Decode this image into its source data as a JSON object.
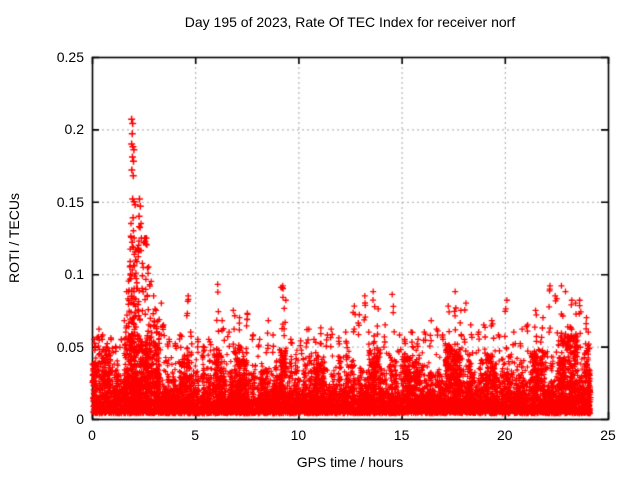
{
  "chart_data": {
    "type": "scatter",
    "title": "Day 195 of 2023, Rate Of TEC Index for receiver norf",
    "xlabel": "GPS time / hours",
    "ylabel": "ROTI / TECUs",
    "xlim": [
      0,
      25
    ],
    "ylim": [
      0,
      0.25
    ],
    "xticks": [
      0,
      5,
      10,
      15,
      20,
      25
    ],
    "xtick_labels": [
      "0",
      "5",
      "10",
      "15",
      "20",
      "25"
    ],
    "yticks": [
      0,
      0.05,
      0.1,
      0.15,
      0.2,
      0.25
    ],
    "ytick_labels": [
      "0",
      "0.05",
      "0.1",
      "0.15",
      "0.2",
      "0.25"
    ],
    "grid": true,
    "legend": "none",
    "marker": "plus",
    "colors": {
      "marker": "#ff0000",
      "grid": "#a8a8a8",
      "border": "#000000",
      "text": "#000000",
      "background": "#ffffff"
    },
    "series_name": "ROTI",
    "x_data_range": [
      0.02,
      24.18
    ],
    "y_peak": 0.207,
    "baseline_band": {
      "y_floor": 0.0035,
      "exp_mean": 0.0085,
      "y_cap": 0.05,
      "points": 8200,
      "texture_bumps": {
        "count": 70,
        "top_min": 0.03,
        "top_max": 0.048,
        "n_each": 22
      }
    },
    "peak_points": [
      [
        1.92,
        0.207
      ],
      [
        1.97,
        0.204
      ],
      [
        1.95,
        0.197
      ],
      [
        1.92,
        0.19
      ],
      [
        1.98,
        0.188
      ],
      [
        2.03,
        0.186
      ],
      [
        1.96,
        0.181
      ],
      [
        2.01,
        0.178
      ],
      [
        1.93,
        0.172
      ],
      [
        2.0,
        0.168
      ],
      [
        1.97,
        0.152
      ],
      [
        2.04,
        0.15
      ],
      [
        2.09,
        0.148
      ],
      [
        1.99,
        0.139
      ],
      [
        2.3,
        0.152
      ],
      [
        2.34,
        0.147
      ],
      [
        2.28,
        0.14
      ]
    ],
    "spikes": [
      {
        "x": 0.15,
        "ymax": 0.055,
        "n": 4
      },
      {
        "x": 0.3,
        "ymax": 0.062,
        "n": 5
      },
      {
        "x": 0.5,
        "ymax": 0.058,
        "n": 4
      },
      {
        "x": 0.75,
        "ymax": 0.052,
        "n": 3
      },
      {
        "x": 0.95,
        "ymax": 0.056,
        "n": 4
      },
      {
        "x": 1.2,
        "ymax": 0.05,
        "n": 3
      },
      {
        "x": 1.4,
        "ymax": 0.055,
        "n": 3
      },
      {
        "x": 1.62,
        "ymax": 0.068,
        "n": 5
      },
      {
        "x": 1.72,
        "ymax": 0.088,
        "n": 7
      },
      {
        "x": 1.82,
        "ymax": 0.105,
        "n": 10
      },
      {
        "x": 1.9,
        "ymax": 0.135,
        "n": 22
      },
      {
        "x": 2.0,
        "ymax": 0.13,
        "n": 20
      },
      {
        "x": 2.1,
        "ymax": 0.125,
        "n": 16
      },
      {
        "x": 2.2,
        "ymax": 0.12,
        "n": 14
      },
      {
        "x": 2.32,
        "ymax": 0.135,
        "n": 16
      },
      {
        "x": 2.45,
        "ymax": 0.125,
        "n": 12
      },
      {
        "x": 2.6,
        "ymax": 0.125,
        "n": 12
      },
      {
        "x": 2.72,
        "ymax": 0.105,
        "n": 10
      },
      {
        "x": 2.85,
        "ymax": 0.095,
        "n": 9
      },
      {
        "x": 3.0,
        "ymax": 0.085,
        "n": 8
      },
      {
        "x": 3.15,
        "ymax": 0.075,
        "n": 7
      },
      {
        "x": 3.3,
        "ymax": 0.08,
        "n": 6
      },
      {
        "x": 3.45,
        "ymax": 0.065,
        "n": 5
      },
      {
        "x": 3.7,
        "ymax": 0.055,
        "n": 4
      },
      {
        "x": 4.0,
        "ymax": 0.052,
        "n": 3
      },
      {
        "x": 4.3,
        "ymax": 0.058,
        "n": 4
      },
      {
        "x": 4.62,
        "ymax": 0.085,
        "n": 6
      },
      {
        "x": 4.8,
        "ymax": 0.06,
        "n": 3
      },
      {
        "x": 5.1,
        "ymax": 0.055,
        "n": 3
      },
      {
        "x": 5.4,
        "ymax": 0.05,
        "n": 3
      },
      {
        "x": 5.7,
        "ymax": 0.055,
        "n": 3
      },
      {
        "x": 6.1,
        "ymax": 0.093,
        "n": 7
      },
      {
        "x": 6.35,
        "ymax": 0.068,
        "n": 4
      },
      {
        "x": 6.6,
        "ymax": 0.06,
        "n": 3
      },
      {
        "x": 6.9,
        "ymax": 0.075,
        "n": 5
      },
      {
        "x": 7.15,
        "ymax": 0.07,
        "n": 4
      },
      {
        "x": 7.5,
        "ymax": 0.073,
        "n": 5
      },
      {
        "x": 7.8,
        "ymax": 0.058,
        "n": 3
      },
      {
        "x": 8.1,
        "ymax": 0.055,
        "n": 3
      },
      {
        "x": 8.5,
        "ymax": 0.068,
        "n": 5
      },
      {
        "x": 8.8,
        "ymax": 0.058,
        "n": 3
      },
      {
        "x": 9.2,
        "ymax": 0.092,
        "n": 8
      },
      {
        "x": 9.35,
        "ymax": 0.082,
        "n": 5
      },
      {
        "x": 9.65,
        "ymax": 0.055,
        "n": 3
      },
      {
        "x": 10.1,
        "ymax": 0.054,
        "n": 3
      },
      {
        "x": 10.45,
        "ymax": 0.062,
        "n": 4
      },
      {
        "x": 10.8,
        "ymax": 0.055,
        "n": 3
      },
      {
        "x": 11.05,
        "ymax": 0.063,
        "n": 4
      },
      {
        "x": 11.35,
        "ymax": 0.058,
        "n": 3
      },
      {
        "x": 11.6,
        "ymax": 0.062,
        "n": 4
      },
      {
        "x": 12.0,
        "ymax": 0.056,
        "n": 3
      },
      {
        "x": 12.35,
        "ymax": 0.06,
        "n": 4
      },
      {
        "x": 12.7,
        "ymax": 0.078,
        "n": 5
      },
      {
        "x": 12.95,
        "ymax": 0.072,
        "n": 4
      },
      {
        "x": 13.2,
        "ymax": 0.085,
        "n": 5
      },
      {
        "x": 13.45,
        "ymax": 0.06,
        "n": 3
      },
      {
        "x": 13.65,
        "ymax": 0.088,
        "n": 6
      },
      {
        "x": 13.85,
        "ymax": 0.076,
        "n": 4
      },
      {
        "x": 14.15,
        "ymax": 0.065,
        "n": 4
      },
      {
        "x": 14.6,
        "ymax": 0.086,
        "n": 4
      },
      {
        "x": 14.9,
        "ymax": 0.058,
        "n": 3
      },
      {
        "x": 15.2,
        "ymax": 0.055,
        "n": 3
      },
      {
        "x": 15.5,
        "ymax": 0.06,
        "n": 4
      },
      {
        "x": 15.8,
        "ymax": 0.055,
        "n": 3
      },
      {
        "x": 16.1,
        "ymax": 0.06,
        "n": 4
      },
      {
        "x": 16.4,
        "ymax": 0.068,
        "n": 4
      },
      {
        "x": 16.7,
        "ymax": 0.062,
        "n": 3
      },
      {
        "x": 17.0,
        "ymax": 0.058,
        "n": 3
      },
      {
        "x": 17.3,
        "ymax": 0.078,
        "n": 6
      },
      {
        "x": 17.6,
        "ymax": 0.088,
        "n": 6
      },
      {
        "x": 17.85,
        "ymax": 0.075,
        "n": 4
      },
      {
        "x": 18.1,
        "ymax": 0.08,
        "n": 5
      },
      {
        "x": 18.4,
        "ymax": 0.065,
        "n": 4
      },
      {
        "x": 18.7,
        "ymax": 0.06,
        "n": 3
      },
      {
        "x": 19.0,
        "ymax": 0.065,
        "n": 4
      },
      {
        "x": 19.4,
        "ymax": 0.068,
        "n": 4
      },
      {
        "x": 19.7,
        "ymax": 0.058,
        "n": 3
      },
      {
        "x": 20.05,
        "ymax": 0.082,
        "n": 5
      },
      {
        "x": 20.45,
        "ymax": 0.06,
        "n": 3
      },
      {
        "x": 20.8,
        "ymax": 0.062,
        "n": 3
      },
      {
        "x": 21.1,
        "ymax": 0.065,
        "n": 4
      },
      {
        "x": 21.5,
        "ymax": 0.075,
        "n": 5
      },
      {
        "x": 21.8,
        "ymax": 0.07,
        "n": 4
      },
      {
        "x": 22.2,
        "ymax": 0.092,
        "n": 6
      },
      {
        "x": 22.5,
        "ymax": 0.085,
        "n": 5
      },
      {
        "x": 22.8,
        "ymax": 0.092,
        "n": 6
      },
      {
        "x": 23.0,
        "ymax": 0.088,
        "n": 6
      },
      {
        "x": 23.2,
        "ymax": 0.082,
        "n": 5
      },
      {
        "x": 23.45,
        "ymax": 0.08,
        "n": 5
      },
      {
        "x": 23.65,
        "ymax": 0.082,
        "n": 6
      },
      {
        "x": 23.9,
        "ymax": 0.07,
        "n": 4
      },
      {
        "x": 24.05,
        "ymax": 0.06,
        "n": 3
      }
    ],
    "bushes": [
      {
        "x": 0.45,
        "w": 0.9,
        "top": 0.048,
        "n": 130
      },
      {
        "x": 2.4,
        "w": 1.7,
        "top": 0.056,
        "n": 320
      },
      {
        "x": 4.6,
        "w": 0.3,
        "top": 0.045,
        "n": 40
      },
      {
        "x": 6.1,
        "w": 0.4,
        "top": 0.048,
        "n": 60
      },
      {
        "x": 7.2,
        "w": 0.6,
        "top": 0.05,
        "n": 90
      },
      {
        "x": 9.25,
        "w": 0.35,
        "top": 0.048,
        "n": 55
      },
      {
        "x": 11.0,
        "w": 0.5,
        "top": 0.044,
        "n": 60
      },
      {
        "x": 13.7,
        "w": 0.6,
        "top": 0.048,
        "n": 80
      },
      {
        "x": 15.5,
        "w": 0.8,
        "top": 0.044,
        "n": 80
      },
      {
        "x": 17.5,
        "w": 0.8,
        "top": 0.052,
        "n": 120
      },
      {
        "x": 19.3,
        "w": 0.5,
        "top": 0.045,
        "n": 60
      },
      {
        "x": 21.6,
        "w": 0.5,
        "top": 0.048,
        "n": 70
      },
      {
        "x": 23.05,
        "w": 1.0,
        "top": 0.058,
        "n": 180
      },
      {
        "x": 24.0,
        "w": 0.3,
        "top": 0.05,
        "n": 50
      }
    ]
  }
}
